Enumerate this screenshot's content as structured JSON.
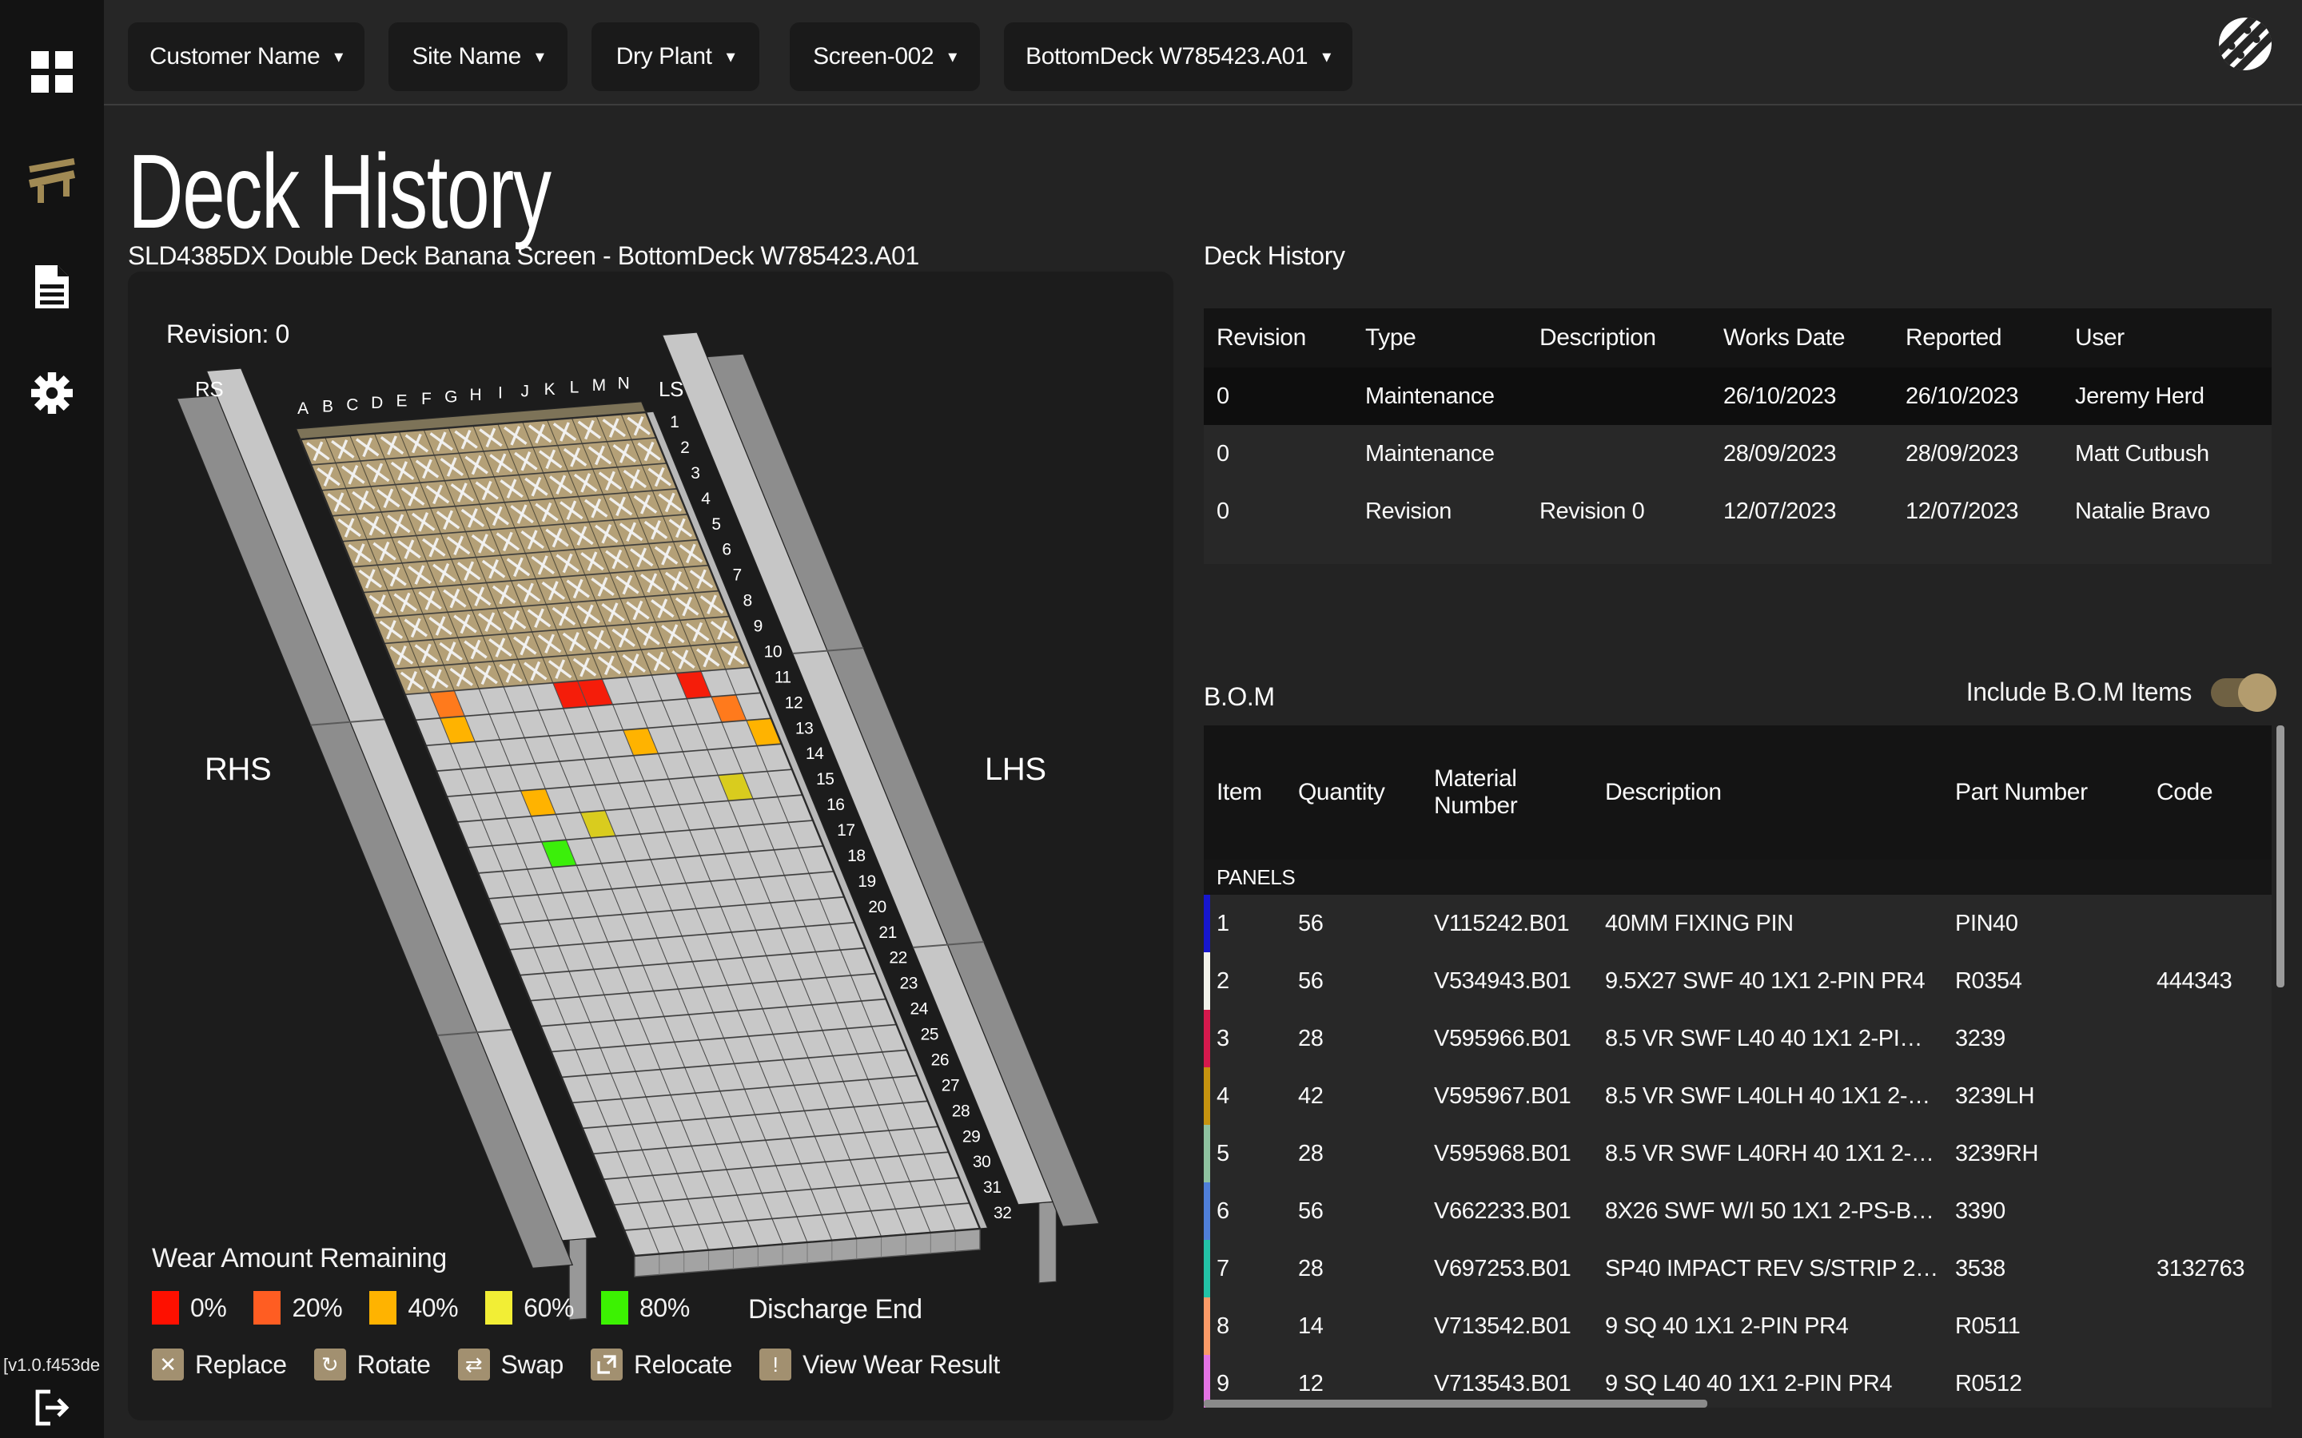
{
  "topbar": {
    "dropdowns": [
      {
        "label": "Customer Name"
      },
      {
        "label": "Site Name"
      },
      {
        "label": "Dry Plant"
      },
      {
        "label": "Screen-002"
      },
      {
        "label": "BottomDeck W785423.A01"
      }
    ]
  },
  "sidebar": {
    "version": "[v1.0.f453de"
  },
  "page": {
    "title": "Deck History",
    "subtitle": "SLD4385DX Double Deck Banana Screen - BottomDeck W785423.A01"
  },
  "deck_panel": {
    "revision_label": "Revision: 0",
    "labels": {
      "rs": "RS",
      "ls": "LS",
      "rhs": "RHS",
      "lhs": "LHS",
      "discharge": "Discharge End"
    },
    "legend": {
      "title": "Wear Amount Remaining",
      "items": [
        {
          "label": "0%",
          "color": "#fe1000"
        },
        {
          "label": "20%",
          "color": "#ff5d22"
        },
        {
          "label": "40%",
          "color": "#ffb300"
        },
        {
          "label": "60%",
          "color": "#f2ee35"
        },
        {
          "label": "80%",
          "color": "#3cf202"
        }
      ]
    },
    "actions": [
      {
        "icon": "x-icon",
        "label": "Replace"
      },
      {
        "icon": "rotate-icon",
        "label": "Rotate"
      },
      {
        "icon": "swap-icon",
        "label": "Swap"
      },
      {
        "icon": "relocate-icon",
        "label": "Relocate"
      },
      {
        "icon": "alert-icon",
        "label": "View Wear Result"
      }
    ],
    "deck": {
      "columns": [
        "A",
        "B",
        "C",
        "D",
        "E",
        "F",
        "G",
        "H",
        "I",
        "J",
        "K",
        "L",
        "M",
        "N"
      ],
      "row_count": 32,
      "replaced_rows": 10,
      "panel_color": "#b4a077",
      "deck_color": "#c8c8c8",
      "wear_cells": [
        {
          "row": 11,
          "col": "B",
          "color": "#ff7a1c"
        },
        {
          "row": 11,
          "col": "G",
          "color": "#f51d0a"
        },
        {
          "row": 11,
          "col": "H",
          "color": "#f51d0a"
        },
        {
          "row": 11,
          "col": "L",
          "color": "#f51d0a"
        },
        {
          "row": 12,
          "col": "B",
          "color": "#ffb300"
        },
        {
          "row": 12,
          "col": "M",
          "color": "#ff7a1c"
        },
        {
          "row": 13,
          "col": "I",
          "color": "#ffb300"
        },
        {
          "row": 13,
          "col": "N",
          "color": "#ffb300"
        },
        {
          "row": 15,
          "col": "D",
          "color": "#ffb300"
        },
        {
          "row": 15,
          "col": "L",
          "color": "#d9cc1e"
        },
        {
          "row": 16,
          "col": "F",
          "color": "#d9cc1e"
        },
        {
          "row": 17,
          "col": "D",
          "color": "#3bef0a"
        }
      ]
    }
  },
  "history": {
    "title": "Deck History",
    "columns": [
      "Revision",
      "Type",
      "Description",
      "Works Date",
      "Reported",
      "User"
    ],
    "rows": [
      {
        "highlighted": true,
        "cells": [
          "0",
          "Maintenance",
          "",
          "26/10/2023",
          "26/10/2023",
          "Jeremy Herd"
        ]
      },
      {
        "highlighted": false,
        "cells": [
          "0",
          "Maintenance",
          "",
          "28/09/2023",
          "28/09/2023",
          "Matt Cutbush"
        ]
      },
      {
        "highlighted": false,
        "cells": [
          "0",
          "Revision",
          "Revision 0",
          "12/07/2023",
          "12/07/2023",
          "Natalie Bravo"
        ]
      }
    ]
  },
  "bom": {
    "title": "B.O.M",
    "toggle_label": "Include B.O.M Items",
    "toggle_on": true,
    "columns": [
      "Item",
      "Quantity",
      "Material Number",
      "Description",
      "Part Number",
      "Code"
    ],
    "group": "PANELS",
    "rows": [
      {
        "strip": "#1717cf",
        "item": "1",
        "quantity": "56",
        "material": "V115242.B01",
        "description": "40MM FIXING PIN",
        "part": "PIN40",
        "code": ""
      },
      {
        "strip": "#f2f2ea",
        "item": "2",
        "quantity": "56",
        "material": "V534943.B01",
        "description": "9.5X27 SWF 40 1X1 2-PIN PR4",
        "part": "R0354",
        "code": "444343"
      },
      {
        "strip": "#d6194d",
        "item": "3",
        "quantity": "28",
        "material": "V595966.B01",
        "description": "8.5 VR SWF L40 40 1X1 2-PI…",
        "part": "3239",
        "code": ""
      },
      {
        "strip": "#c6930f",
        "item": "4",
        "quantity": "42",
        "material": "V595967.B01",
        "description": "8.5 VR SWF L40LH 40 1X1 2-…",
        "part": "3239LH",
        "code": ""
      },
      {
        "strip": "#8fc2a0",
        "item": "5",
        "quantity": "28",
        "material": "V595968.B01",
        "description": "8.5 VR SWF L40RH 40 1X1 2-…",
        "part": "3239RH",
        "code": ""
      },
      {
        "strip": "#4f7fd9",
        "item": "6",
        "quantity": "56",
        "material": "V662233.B01",
        "description": "8X26 SWF W/I 50 1X1 2-PS-B…",
        "part": "3390",
        "code": ""
      },
      {
        "strip": "#23c2a6",
        "item": "7",
        "quantity": "28",
        "material": "V697253.B01",
        "description": "SP40 IMPACT REV S/STRIP 2…",
        "part": "3538",
        "code": "3132763"
      },
      {
        "strip": "#fb9a67",
        "item": "8",
        "quantity": "14",
        "material": "V713542.B01",
        "description": "9 SQ 40 1X1 2-PIN PR4",
        "part": "R0511",
        "code": ""
      },
      {
        "strip": "#e473e4",
        "item": "9",
        "quantity": "12",
        "material": "V713543.B01",
        "description": "9 SQ L40 40 1X1 2-PIN PR4",
        "part": "R0512",
        "code": ""
      }
    ]
  }
}
